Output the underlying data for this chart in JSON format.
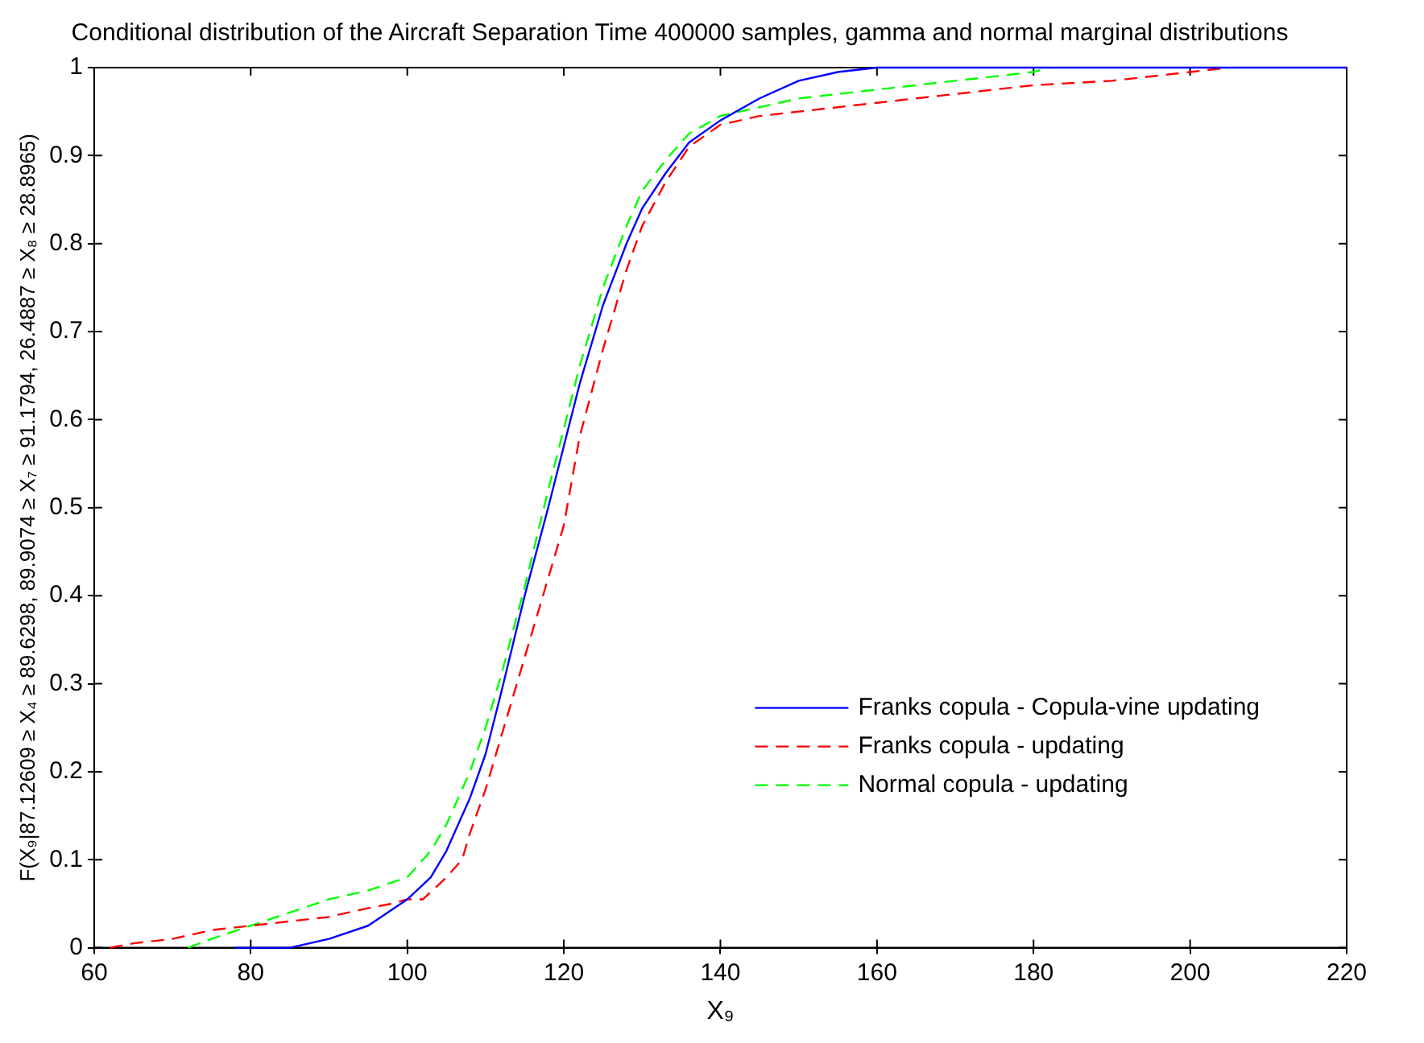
{
  "chart_data": {
    "type": "line",
    "title": "Conditional distribution of the Aircraft Separation Time 400000 samples, gamma and normal marginal distributions",
    "xlabel": "X₉",
    "ylabel": "F(X₉|87.12609 ≥ X₄ ≥ 89.6298, 89.9074 ≥ X₇ ≥ 91.1794, 26.4887 ≥ X₈ ≥ 28.8965)",
    "xlim": [
      60,
      220
    ],
    "xticks": [
      60,
      80,
      100,
      120,
      140,
      160,
      180,
      200,
      220
    ],
    "ylim": [
      0,
      1
    ],
    "yticks": [
      0,
      0.1,
      0.2,
      0.3,
      0.4,
      0.5,
      0.6,
      0.7,
      0.8,
      0.9,
      1
    ],
    "grid": false,
    "legend": "bottom right",
    "marker": "none",
    "series": [
      {
        "name": "Franks copula - Copula-vine updating",
        "color": "#0000ff",
        "line_style": "solid",
        "x": [
          78,
          85,
          90,
          95,
          100,
          103,
          105,
          108,
          110,
          112,
          115,
          118,
          120,
          122,
          125,
          128,
          130,
          133,
          136,
          140,
          145,
          150,
          155,
          160,
          220
        ],
        "values": [
          0,
          0,
          0.01,
          0.025,
          0.055,
          0.08,
          0.11,
          0.17,
          0.22,
          0.29,
          0.4,
          0.5,
          0.57,
          0.64,
          0.73,
          0.8,
          0.84,
          0.88,
          0.915,
          0.94,
          0.965,
          0.985,
          0.995,
          1,
          1
        ]
      },
      {
        "name": "Franks copula - updating",
        "color": "#ff0000",
        "line_style": "dashed",
        "x": [
          62,
          65,
          70,
          75,
          80,
          85,
          90,
          95,
          98,
          100,
          102,
          105,
          107,
          108,
          110,
          112,
          115,
          118,
          120,
          122,
          125,
          128,
          130,
          133,
          136,
          140,
          145,
          150,
          160,
          170,
          180,
          190,
          200,
          205
        ],
        "values": [
          0,
          0.005,
          0.01,
          0.02,
          0.025,
          0.03,
          0.035,
          0.045,
          0.05,
          0.055,
          0.055,
          0.08,
          0.1,
          0.13,
          0.18,
          0.24,
          0.33,
          0.42,
          0.48,
          0.58,
          0.68,
          0.77,
          0.82,
          0.87,
          0.91,
          0.935,
          0.945,
          0.95,
          0.96,
          0.97,
          0.98,
          0.985,
          0.995,
          1
        ]
      },
      {
        "name": "Normal copula - updating",
        "color": "#00ff00",
        "line_style": "dashed",
        "x": [
          72,
          75,
          80,
          85,
          90,
          95,
          100,
          103,
          105,
          108,
          110,
          112,
          115,
          118,
          120,
          122,
          125,
          128,
          130,
          133,
          136,
          140,
          145,
          150,
          160,
          170,
          180,
          182
        ],
        "values": [
          0,
          0.01,
          0.025,
          0.04,
          0.055,
          0.065,
          0.08,
          0.11,
          0.14,
          0.2,
          0.25,
          0.31,
          0.41,
          0.52,
          0.59,
          0.66,
          0.75,
          0.82,
          0.86,
          0.895,
          0.925,
          0.945,
          0.955,
          0.965,
          0.975,
          0.985,
          0.995,
          1
        ]
      }
    ]
  }
}
